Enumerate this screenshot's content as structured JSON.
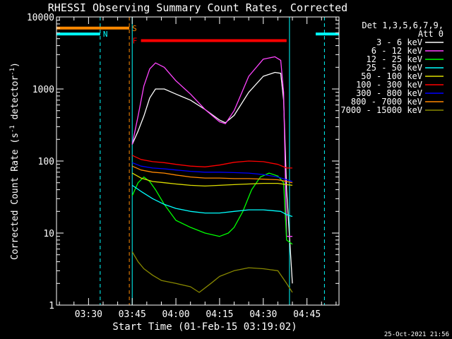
{
  "chart_data": {
    "type": "line",
    "title": "RHESSI Observing Summary Count Rates, Corrected",
    "xlabel": "Start Time (01-Feb-15 03:19:02)",
    "ylabel": "Corrected Count Rate (s",
    "ylabel_sup1": "-1",
    "ylabel_mid": " detector",
    "ylabel_sup2": "-1",
    "ylabel_end": ")",
    "x_range": [
      "03:19",
      "04:56"
    ],
    "x_ticks": [
      "03:30",
      "03:45",
      "04:00",
      "04:15",
      "04:30",
      "04:45"
    ],
    "y_scale": "log",
    "ylim": [
      1,
      10000
    ],
    "y_ticks": [
      "1",
      "10",
      "100",
      "1000",
      "10000"
    ],
    "legend_header": [
      "Det 1,3,5,6,7,9,",
      "Att 0"
    ],
    "legend_placement": "right",
    "timestamp": "25-Oct-2021 21:56",
    "series": [
      {
        "name": "3 - 6 keV",
        "color": "#ffffff",
        "points": [
          [
            "03:45",
            170
          ],
          [
            "03:47",
            260
          ],
          [
            "03:49",
            420
          ],
          [
            "03:51",
            750
          ],
          [
            "03:53",
            1000
          ],
          [
            "03:56",
            1000
          ],
          [
            "04:00",
            850
          ],
          [
            "04:05",
            700
          ],
          [
            "04:10",
            520
          ],
          [
            "04:15",
            370
          ],
          [
            "04:17",
            340
          ],
          [
            "04:20",
            430
          ],
          [
            "04:25",
            900
          ],
          [
            "04:30",
            1500
          ],
          [
            "04:34",
            1700
          ],
          [
            "04:36",
            1650
          ],
          [
            "04:37",
            700
          ],
          [
            "04:38",
            40
          ],
          [
            "04:40",
            2
          ]
        ]
      },
      {
        "name": "6 - 12 keV",
        "color": "#ff44ff",
        "points": [
          [
            "03:45",
            170
          ],
          [
            "03:47",
            420
          ],
          [
            "03:49",
            1100
          ],
          [
            "03:51",
            1900
          ],
          [
            "03:53",
            2300
          ],
          [
            "03:56",
            2000
          ],
          [
            "04:00",
            1300
          ],
          [
            "04:05",
            850
          ],
          [
            "04:10",
            520
          ],
          [
            "04:15",
            350
          ],
          [
            "04:17",
            330
          ],
          [
            "04:20",
            500
          ],
          [
            "04:25",
            1500
          ],
          [
            "04:30",
            2600
          ],
          [
            "04:34",
            2800
          ],
          [
            "04:36",
            2500
          ],
          [
            "04:37",
            900
          ],
          [
            "04:38",
            9
          ],
          [
            "04:40",
            9
          ]
        ]
      },
      {
        "name": "12 - 25 keV",
        "color": "#00ff00",
        "points": [
          [
            "03:45",
            33
          ],
          [
            "03:47",
            50
          ],
          [
            "03:49",
            60
          ],
          [
            "03:51",
            52
          ],
          [
            "03:53",
            40
          ],
          [
            "03:56",
            25
          ],
          [
            "04:00",
            15
          ],
          [
            "04:05",
            12
          ],
          [
            "04:10",
            10
          ],
          [
            "04:15",
            9
          ],
          [
            "04:18",
            10
          ],
          [
            "04:20",
            12
          ],
          [
            "04:23",
            20
          ],
          [
            "04:26",
            40
          ],
          [
            "04:29",
            60
          ],
          [
            "04:32",
            68
          ],
          [
            "04:35",
            62
          ],
          [
            "04:37",
            50
          ],
          [
            "04:38",
            8
          ],
          [
            "04:40",
            7
          ]
        ]
      },
      {
        "name": "25 - 50 keV",
        "color": "#00ffff",
        "points": [
          [
            "03:45",
            46
          ],
          [
            "03:48",
            38
          ],
          [
            "03:52",
            30
          ],
          [
            "03:56",
            25
          ],
          [
            "04:00",
            22
          ],
          [
            "04:05",
            20
          ],
          [
            "04:10",
            19
          ],
          [
            "04:15",
            19
          ],
          [
            "04:20",
            20
          ],
          [
            "04:25",
            21
          ],
          [
            "04:30",
            21
          ],
          [
            "04:36",
            20
          ],
          [
            "04:37",
            19
          ],
          [
            "04:38",
            18
          ],
          [
            "04:40",
            17
          ]
        ]
      },
      {
        "name": "50 - 100 keV",
        "color": "#dddd00",
        "points": [
          [
            "03:45",
            68
          ],
          [
            "03:48",
            58
          ],
          [
            "03:52",
            52
          ],
          [
            "03:56",
            50
          ],
          [
            "04:00",
            48
          ],
          [
            "04:05",
            46
          ],
          [
            "04:10",
            45
          ],
          [
            "04:15",
            46
          ],
          [
            "04:20",
            47
          ],
          [
            "04:25",
            48
          ],
          [
            "04:30",
            49
          ],
          [
            "04:35",
            49
          ],
          [
            "04:38",
            47
          ],
          [
            "04:40",
            46
          ]
        ]
      },
      {
        "name": "100 - 300 keV",
        "color": "#ff0000",
        "points": [
          [
            "03:45",
            120
          ],
          [
            "03:48",
            105
          ],
          [
            "03:52",
            98
          ],
          [
            "03:56",
            95
          ],
          [
            "04:00",
            90
          ],
          [
            "04:05",
            85
          ],
          [
            "04:10",
            83
          ],
          [
            "04:15",
            88
          ],
          [
            "04:20",
            96
          ],
          [
            "04:25",
            100
          ],
          [
            "04:30",
            98
          ],
          [
            "04:35",
            90
          ],
          [
            "04:38",
            80
          ],
          [
            "04:40",
            80
          ]
        ]
      },
      {
        "name": "300 - 800 keV",
        "color": "#0000ff",
        "points": [
          [
            "03:45",
            95
          ],
          [
            "03:48",
            85
          ],
          [
            "03:52",
            80
          ],
          [
            "03:56",
            78
          ],
          [
            "04:00",
            75
          ],
          [
            "04:05",
            72
          ],
          [
            "04:10",
            70
          ],
          [
            "04:15",
            70
          ],
          [
            "04:20",
            69
          ],
          [
            "04:25",
            68
          ],
          [
            "04:30",
            65
          ],
          [
            "04:35",
            60
          ],
          [
            "04:38",
            55
          ],
          [
            "04:40",
            52
          ]
        ]
      },
      {
        "name": "800 - 7000 keV",
        "color": "#ff8800",
        "points": [
          [
            "03:45",
            85
          ],
          [
            "03:48",
            75
          ],
          [
            "03:52",
            70
          ],
          [
            "03:56",
            68
          ],
          [
            "04:00",
            64
          ],
          [
            "04:05",
            60
          ],
          [
            "04:10",
            58
          ],
          [
            "04:15",
            58
          ],
          [
            "04:20",
            57
          ],
          [
            "04:25",
            57
          ],
          [
            "04:30",
            56
          ],
          [
            "04:35",
            55
          ],
          [
            "04:38",
            52
          ],
          [
            "04:40",
            50
          ]
        ]
      },
      {
        "name": "7000 - 15000 keV",
        "color": "#888800",
        "points": [
          [
            "03:45",
            5.5
          ],
          [
            "03:47",
            4.0
          ],
          [
            "03:49",
            3.2
          ],
          [
            "03:52",
            2.6
          ],
          [
            "03:55",
            2.2
          ],
          [
            "04:00",
            2.0
          ],
          [
            "04:05",
            1.8
          ],
          [
            "04:08",
            1.5
          ],
          [
            "04:12",
            2.0
          ],
          [
            "04:15",
            2.5
          ],
          [
            "04:20",
            3.0
          ],
          [
            "04:25",
            3.3
          ],
          [
            "04:30",
            3.2
          ],
          [
            "04:35",
            3.0
          ],
          [
            "04:38",
            2.0
          ],
          [
            "04:40",
            1.5
          ]
        ]
      }
    ],
    "flags": [
      {
        "label": "S",
        "color": "#ff8800",
        "start": "03:19",
        "end": "03:44",
        "value": 7000
      },
      {
        "label": "N",
        "color": "#00ffff",
        "start": "03:19",
        "end": "03:34",
        "value": 5800
      },
      {
        "label": "F",
        "color": "#ff0000",
        "start": "03:48",
        "end": "04:38",
        "value": 4700
      }
    ],
    "cyan_right_bar": {
      "start": "04:48",
      "end": "04:56",
      "value": 5800
    },
    "vertical_lines": [
      {
        "t": "03:19",
        "color": "#00ffff",
        "style": "solid"
      },
      {
        "t": "03:34",
        "color": "#00ffff",
        "style": "dashed"
      },
      {
        "t": "03:44",
        "color": "#ff8800",
        "style": "dashed"
      },
      {
        "t": "03:45",
        "color": "#00ffff",
        "style": "solid"
      },
      {
        "t": "04:39",
        "color": "#00ffff",
        "style": "solid"
      },
      {
        "t": "04:51",
        "color": "#00ffff",
        "style": "dashed"
      }
    ]
  }
}
